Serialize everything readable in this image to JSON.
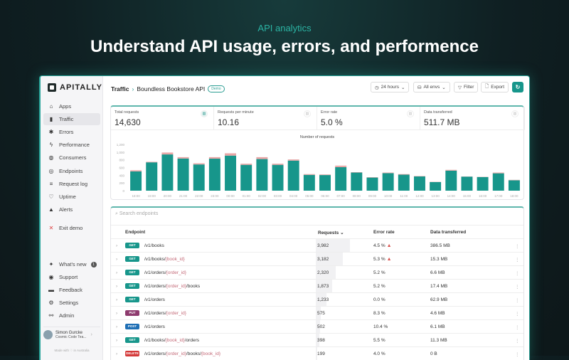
{
  "hero": {
    "kicker": "API analytics",
    "headline": "Understand API usage, errors, and performence"
  },
  "sidebar": {
    "brand": "APITALLY",
    "items": [
      {
        "label": "Apps",
        "icon": "home-icon",
        "glyph": "⌂"
      },
      {
        "label": "Traffic",
        "icon": "bar-chart-icon",
        "glyph": "▮",
        "active": true
      },
      {
        "label": "Errors",
        "icon": "bug-icon",
        "glyph": "✱"
      },
      {
        "label": "Performance",
        "icon": "lightning-icon",
        "glyph": "ϟ"
      },
      {
        "label": "Consumers",
        "icon": "globe-icon",
        "glyph": "◍"
      },
      {
        "label": "Endpoints",
        "icon": "target-icon",
        "glyph": "◎"
      },
      {
        "label": "Request log",
        "icon": "log-icon",
        "glyph": "≡"
      },
      {
        "label": "Uptime",
        "icon": "heart-icon",
        "glyph": "♡"
      },
      {
        "label": "Alerts",
        "icon": "bell-icon",
        "glyph": "▲"
      },
      {
        "label": "Exit demo",
        "icon": "close-icon",
        "glyph": "✕"
      }
    ],
    "bottom": [
      {
        "label": "What's new",
        "icon": "sparkle-icon",
        "glyph": "✦",
        "badge": "1"
      },
      {
        "label": "Support",
        "icon": "lifebuoy-icon",
        "glyph": "◉"
      },
      {
        "label": "Feedback",
        "icon": "chat-icon",
        "glyph": "▬"
      },
      {
        "label": "Settings",
        "icon": "gear-icon",
        "glyph": "⚙"
      },
      {
        "label": "Admin",
        "icon": "admin-icon",
        "glyph": "⚯"
      }
    ],
    "user": {
      "name": "Simon Gurcke",
      "team": "Cosmic Code Tea..."
    },
    "footer": "Made with ♡ in Australia"
  },
  "header": {
    "section": "Traffic",
    "app": "Boundless Bookstore API",
    "badge": "Demo",
    "period": "24 hours",
    "env": "All envs",
    "filter": "Filter",
    "export": "Export"
  },
  "stats": [
    {
      "label": "Total requests",
      "value": "14,630"
    },
    {
      "label": "Requests per minute",
      "value": "10.16"
    },
    {
      "label": "Error rate",
      "value": "5.0 %"
    },
    {
      "label": "Data transferred",
      "value": "511.7 MB"
    }
  ],
  "chart_data": {
    "type": "bar",
    "title": "Number of requests",
    "ylim": [
      0,
      1200
    ],
    "yticks": [
      "0",
      "200",
      "400",
      "600",
      "800",
      "1,000",
      "1,200"
    ],
    "categories": [
      "18:00",
      "19:00",
      "20:00",
      "21:00",
      "22:00",
      "23:00",
      "00:00",
      "01:00",
      "02:00",
      "03:00",
      "04:00",
      "05:00",
      "06:00",
      "07:00",
      "08:00",
      "09:00",
      "10:00",
      "11:00",
      "12:00",
      "13:00",
      "14:00",
      "15:00",
      "16:00",
      "17:00",
      "18:00"
    ],
    "series": [
      {
        "values": [
          500,
          735,
          940,
          835,
          680,
          830,
          910,
          670,
          820,
          670,
          780,
          410,
          405,
          610,
          470,
          340,
          455,
          415,
          370,
          225,
          520,
          365,
          355,
          450,
          270
        ],
        "color": "#17968b"
      },
      {
        "values": [
          30,
          15,
          50,
          35,
          30,
          40,
          60,
          30,
          50,
          30,
          30,
          20,
          15,
          40,
          10,
          10,
          15,
          15,
          10,
          5,
          20,
          5,
          5,
          20,
          10
        ],
        "color": "#e8a6a6"
      }
    ],
    "grid": false,
    "legend": "none",
    "stacked": true
  },
  "table": {
    "search_placeholder": "Search endpoints",
    "columns": [
      "Endpoint",
      "Requests",
      "Error rate",
      "Data transferred"
    ],
    "rows": [
      {
        "method": "GET",
        "path": "/v1/books",
        "requests": "3,982",
        "req": 3982,
        "error": "4.5 %",
        "warn": true,
        "data": "386.5 MB"
      },
      {
        "method": "GET",
        "path": "/v1/books/{book_id}",
        "requests": "3,182",
        "req": 3182,
        "error": "5.3 %",
        "warn": true,
        "data": "15.3 MB"
      },
      {
        "method": "GET",
        "path": "/v1/orders/{order_id}",
        "requests": "2,320",
        "req": 2320,
        "error": "5.2 %",
        "data": "6.6 MB"
      },
      {
        "method": "GET",
        "path": "/v1/orders/{order_id}/books",
        "requests": "1,873",
        "req": 1873,
        "error": "5.2 %",
        "data": "17.4 MB"
      },
      {
        "method": "GET",
        "path": "/v1/orders",
        "requests": "1,233",
        "req": 1233,
        "error": "0.0 %",
        "data": "62.9 MB"
      },
      {
        "method": "PUT",
        "path": "/v1/orders/{order_id}",
        "requests": "575",
        "req": 575,
        "error": "8.3 %",
        "data": "4.6 MB"
      },
      {
        "method": "POST",
        "path": "/v1/orders",
        "requests": "502",
        "req": 502,
        "error": "10.4 %",
        "data": "6.1 MB"
      },
      {
        "method": "GET",
        "path": "/v1/books/{book_id}/orders",
        "requests": "398",
        "req": 398,
        "error": "5.5 %",
        "data": "11.3 MB"
      },
      {
        "method": "DELETE",
        "path": "/v1/orders/{order_id}/books/{book_id}",
        "requests": "199",
        "req": 199,
        "error": "4.0 %",
        "data": "0 B"
      }
    ]
  },
  "colors": {
    "GET": "#17968b",
    "PUT": "#8e3b6e",
    "POST": "#1f6fb5",
    "DELETE": "#d43a3a",
    "accent": "#17968b"
  }
}
